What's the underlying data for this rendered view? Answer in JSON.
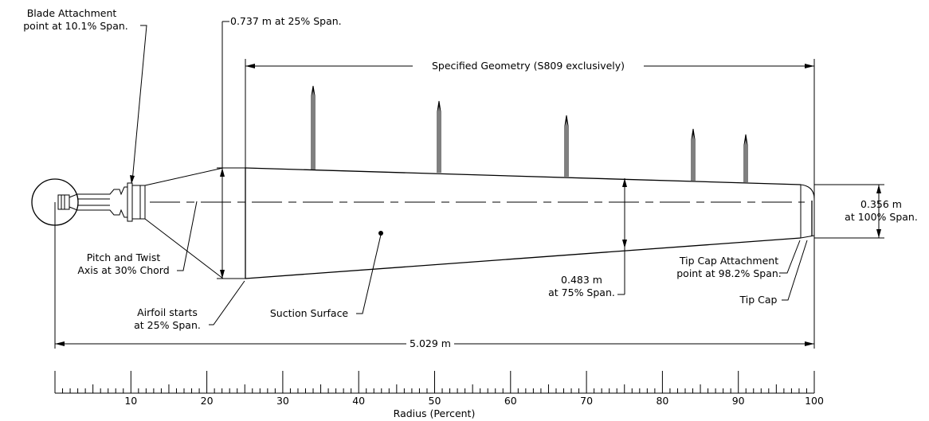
{
  "labels": {
    "blade_attach_1": "Blade Attachment",
    "blade_attach_2": "point at 10.1% Span.",
    "chord_root": "0.737  m  at  25% Span.",
    "specified_geometry": "Specified  Geometry  (S809  exclusively)",
    "pitch_axis_1": "Pitch  and  Twist",
    "pitch_axis_2": "Axis  at  30% Chord",
    "airfoil_start_1": "Airfoil  starts",
    "airfoil_start_2": "at  25% Span.",
    "suction_surface": "Suction  Surface",
    "chord_75_1": "0.483  m",
    "chord_75_2": "at  75% Span.",
    "tip_cap_attach_1": "Tip  Cap  Attachment",
    "tip_cap_attach_2": "point  at  98.2% Span.",
    "tip_cap": "Tip  Cap",
    "chord_tip_1": "0.356  m",
    "chord_tip_2": "at  100% Span.",
    "length": "5.029  m"
  },
  "axis": {
    "label": "Radius  (Percent)",
    "ticks": [
      "10",
      "20",
      "30",
      "40",
      "50",
      "60",
      "70",
      "80",
      "90",
      "100"
    ]
  }
}
